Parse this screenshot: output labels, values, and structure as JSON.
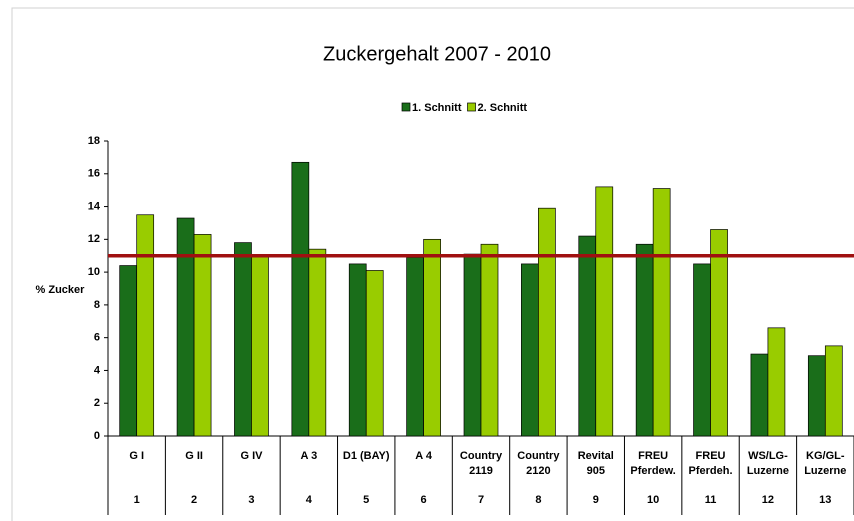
{
  "chart_data": {
    "type": "bar",
    "title": "Zuckergehalt 2007 - 2010",
    "y_label": "% Zucker",
    "categories": [
      [
        "G I"
      ],
      [
        "G II"
      ],
      [
        "G IV"
      ],
      [
        "A 3"
      ],
      [
        "D1 (BAY)"
      ],
      [
        "A 4"
      ],
      [
        "Country",
        "2119"
      ],
      [
        "Country",
        "2120"
      ],
      [
        "Revital",
        "905"
      ],
      [
        "FREU",
        "Pferdew."
      ],
      [
        "FREU",
        "Pferdeh."
      ],
      [
        "WS/LG-",
        "Luzerne"
      ],
      [
        "KG/GL-",
        "Luzerne"
      ]
    ],
    "category_numbers": [
      "1",
      "2",
      "3",
      "4",
      "5",
      "6",
      "7",
      "8",
      "9",
      "10",
      "11",
      "12",
      "13"
    ],
    "series": [
      {
        "name": "1. Schnitt",
        "color": "#1a6e1a",
        "values": [
          10.4,
          13.3,
          11.8,
          16.7,
          10.5,
          10.9,
          11.1,
          10.5,
          12.2,
          11.7,
          10.5,
          5.0,
          4.9
        ]
      },
      {
        "name": "2. Schnitt",
        "color": "#99cc00",
        "values": [
          13.5,
          12.3,
          11.0,
          11.4,
          10.1,
          12.0,
          11.7,
          13.9,
          15.2,
          15.1,
          12.6,
          6.6,
          5.5
        ]
      }
    ],
    "reference_line": {
      "value": 11,
      "color": "#a01010"
    },
    "ylim": [
      0,
      18
    ],
    "yticks": [
      0,
      2,
      4,
      6,
      8,
      10,
      12,
      14,
      16,
      18
    ],
    "grid": false,
    "legend": "top"
  }
}
